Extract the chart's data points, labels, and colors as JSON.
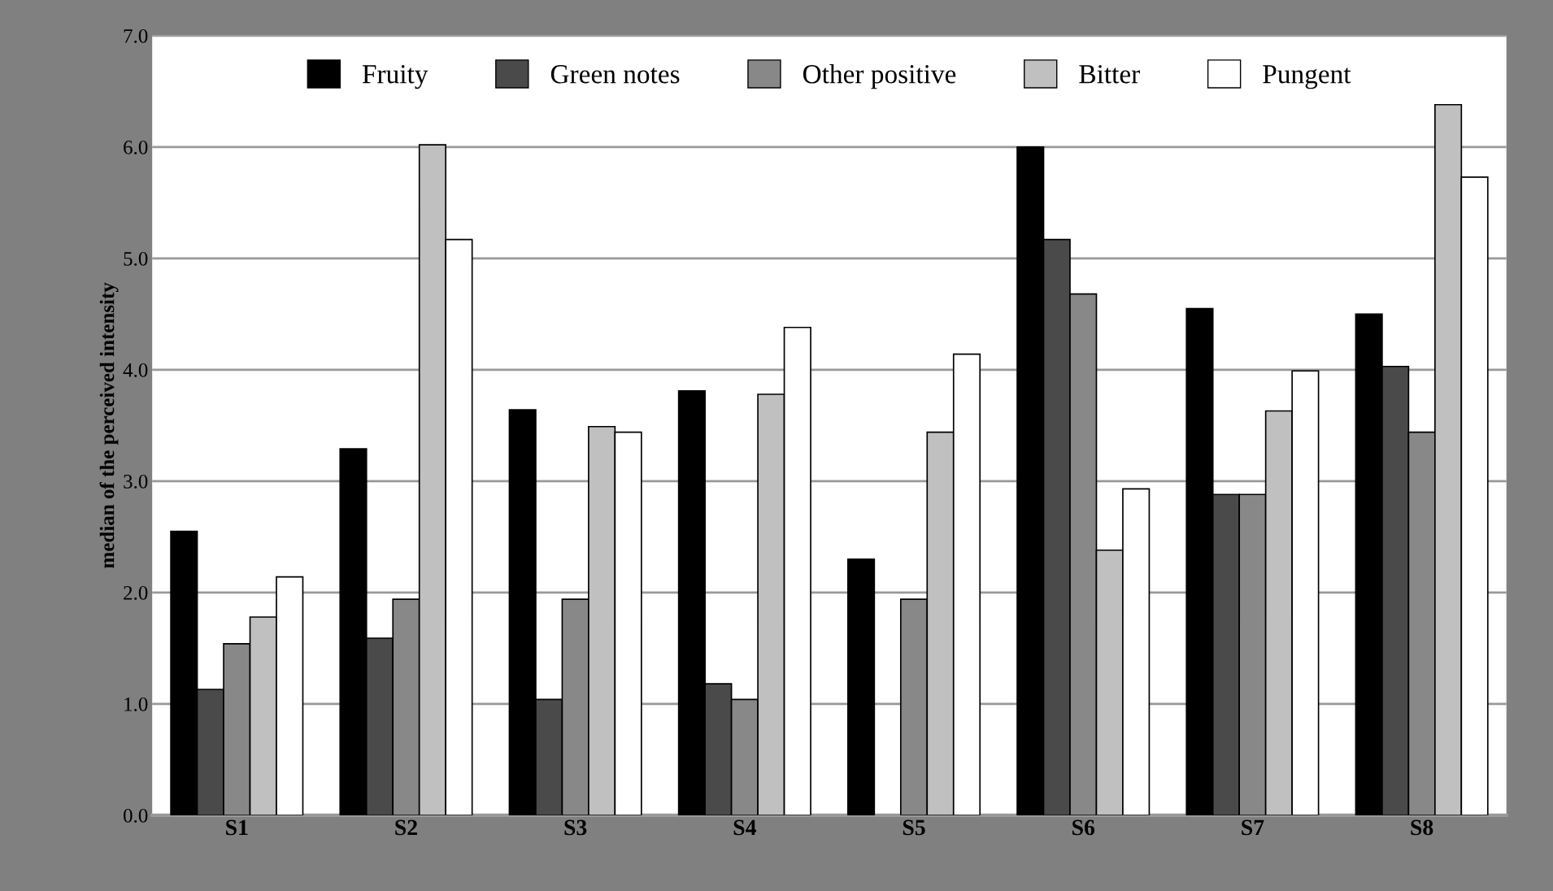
{
  "chart_data": {
    "type": "bar",
    "ylabel": "median of the perceived intensity",
    "categories": [
      "S1",
      "S2",
      "S3",
      "S4",
      "S5",
      "S6",
      "S7",
      "S8"
    ],
    "series": [
      {
        "name": "Fruity",
        "color": "#000000",
        "values": [
          2.55,
          3.29,
          3.64,
          3.81,
          2.3,
          6.0,
          4.55,
          4.5
        ]
      },
      {
        "name": "Green notes",
        "color": "#4a4a4a",
        "values": [
          1.13,
          1.59,
          1.04,
          1.18,
          null,
          5.17,
          2.88,
          4.03
        ]
      },
      {
        "name": "Other positive",
        "color": "#888888",
        "values": [
          1.54,
          1.94,
          1.94,
          1.04,
          1.94,
          4.68,
          2.88,
          3.44
        ]
      },
      {
        "name": "Bitter",
        "color": "#c0c0c0",
        "values": [
          1.78,
          6.02,
          3.49,
          3.78,
          3.44,
          2.38,
          3.63,
          6.38
        ]
      },
      {
        "name": "Pungent",
        "color": "#ffffff",
        "values": [
          2.14,
          5.17,
          3.44,
          4.38,
          4.14,
          2.93,
          3.99,
          5.73
        ]
      }
    ],
    "ylim": [
      0,
      7
    ],
    "yticks": [
      {
        "value": 0,
        "label": "0.0"
      },
      {
        "value": 1,
        "label": "1.0"
      },
      {
        "value": 2,
        "label": "2.0"
      },
      {
        "value": 3,
        "label": "3.0"
      },
      {
        "value": 4,
        "label": "4.0"
      },
      {
        "value": 5,
        "label": "5.0"
      },
      {
        "value": 6,
        "label": "6.0"
      },
      {
        "value": 7,
        "label": "7.0"
      }
    ],
    "grid": "y",
    "legend": "top"
  }
}
